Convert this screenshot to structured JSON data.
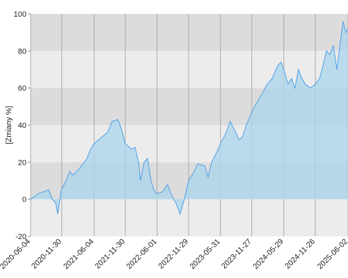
{
  "chart_data": {
    "type": "area",
    "y_label": "[Zmiany %]",
    "x": [
      "2020-06-04",
      "2020-07-18",
      "2020-09-16",
      "2020-10-06",
      "2020-10-26",
      "2020-11-07",
      "2020-11-27",
      "2020-12-25",
      "2021-01-14",
      "2021-02-03",
      "2021-03-15",
      "2021-04-24",
      "2021-05-14",
      "2021-06-04",
      "2021-07-10",
      "2021-08-19",
      "2021-09-16",
      "2021-10-18",
      "2021-11-07",
      "2021-11-30",
      "2022-01-05",
      "2022-01-25",
      "2022-02-14",
      "2022-02-26",
      "2022-03-18",
      "2022-04-07",
      "2022-04-27",
      "2022-05-13",
      "2022-06-01",
      "2022-07-03",
      "2022-07-31",
      "2022-08-24",
      "2022-09-21",
      "2022-10-11",
      "2022-11-04",
      "2022-11-29",
      "2022-12-31",
      "2023-01-20",
      "2023-03-01",
      "2023-03-21",
      "2023-04-10",
      "2023-05-08",
      "2023-05-31",
      "2023-06-28",
      "2023-07-26",
      "2023-08-27",
      "2023-09-16",
      "2023-10-06",
      "2023-10-26",
      "2023-11-27",
      "2023-12-25",
      "2024-01-26",
      "2024-02-23",
      "2024-03-22",
      "2024-04-23",
      "2024-05-13",
      "2024-05-29",
      "2024-06-22",
      "2024-07-12",
      "2024-08-01",
      "2024-08-21",
      "2024-09-10",
      "2024-09-30",
      "2024-10-28",
      "2024-11-26",
      "2024-12-20",
      "2025-01-09",
      "2025-01-29",
      "2025-02-18",
      "2025-03-10",
      "2025-03-30",
      "2025-04-19",
      "2025-05-05",
      "2025-05-21",
      "2025-06-02"
    ],
    "values": [
      0,
      3,
      5,
      0,
      -2,
      -8,
      5,
      10,
      15,
      13,
      17,
      22,
      27,
      30,
      33,
      36,
      42,
      43,
      38,
      30,
      27,
      28,
      20,
      10,
      20,
      22,
      10,
      5,
      3,
      4,
      8,
      2,
      -3,
      -8,
      0,
      10,
      15,
      19,
      18,
      12,
      20,
      25,
      30,
      35,
      42,
      36,
      32,
      34,
      40,
      47,
      52,
      57,
      62,
      65,
      72,
      74,
      70,
      62,
      65,
      60,
      70,
      65,
      62,
      60,
      62,
      65,
      72,
      80,
      78,
      83,
      70,
      85,
      96,
      90,
      92
    ],
    "xlim": [
      "2020-06-04",
      "2025-06-02"
    ],
    "xticks": [
      "2020-06-04",
      "2020-11-30",
      "2021-06-04",
      "2021-11-30",
      "2022-06-01",
      "2022-11-29",
      "2023-05-31",
      "2023-11-27",
      "2024-05-29",
      "2024-11-26",
      "2025-06-02"
    ],
    "ylim": [
      -20,
      100
    ],
    "yticks": [
      -20,
      0,
      20,
      40,
      60,
      80,
      100
    ],
    "line_color": "#4a9ee8",
    "fill_color": "#a9d6ec",
    "band_colors": [
      "#ececec",
      "#dcdcdc"
    ],
    "grid_color": "#a8a8a8"
  }
}
